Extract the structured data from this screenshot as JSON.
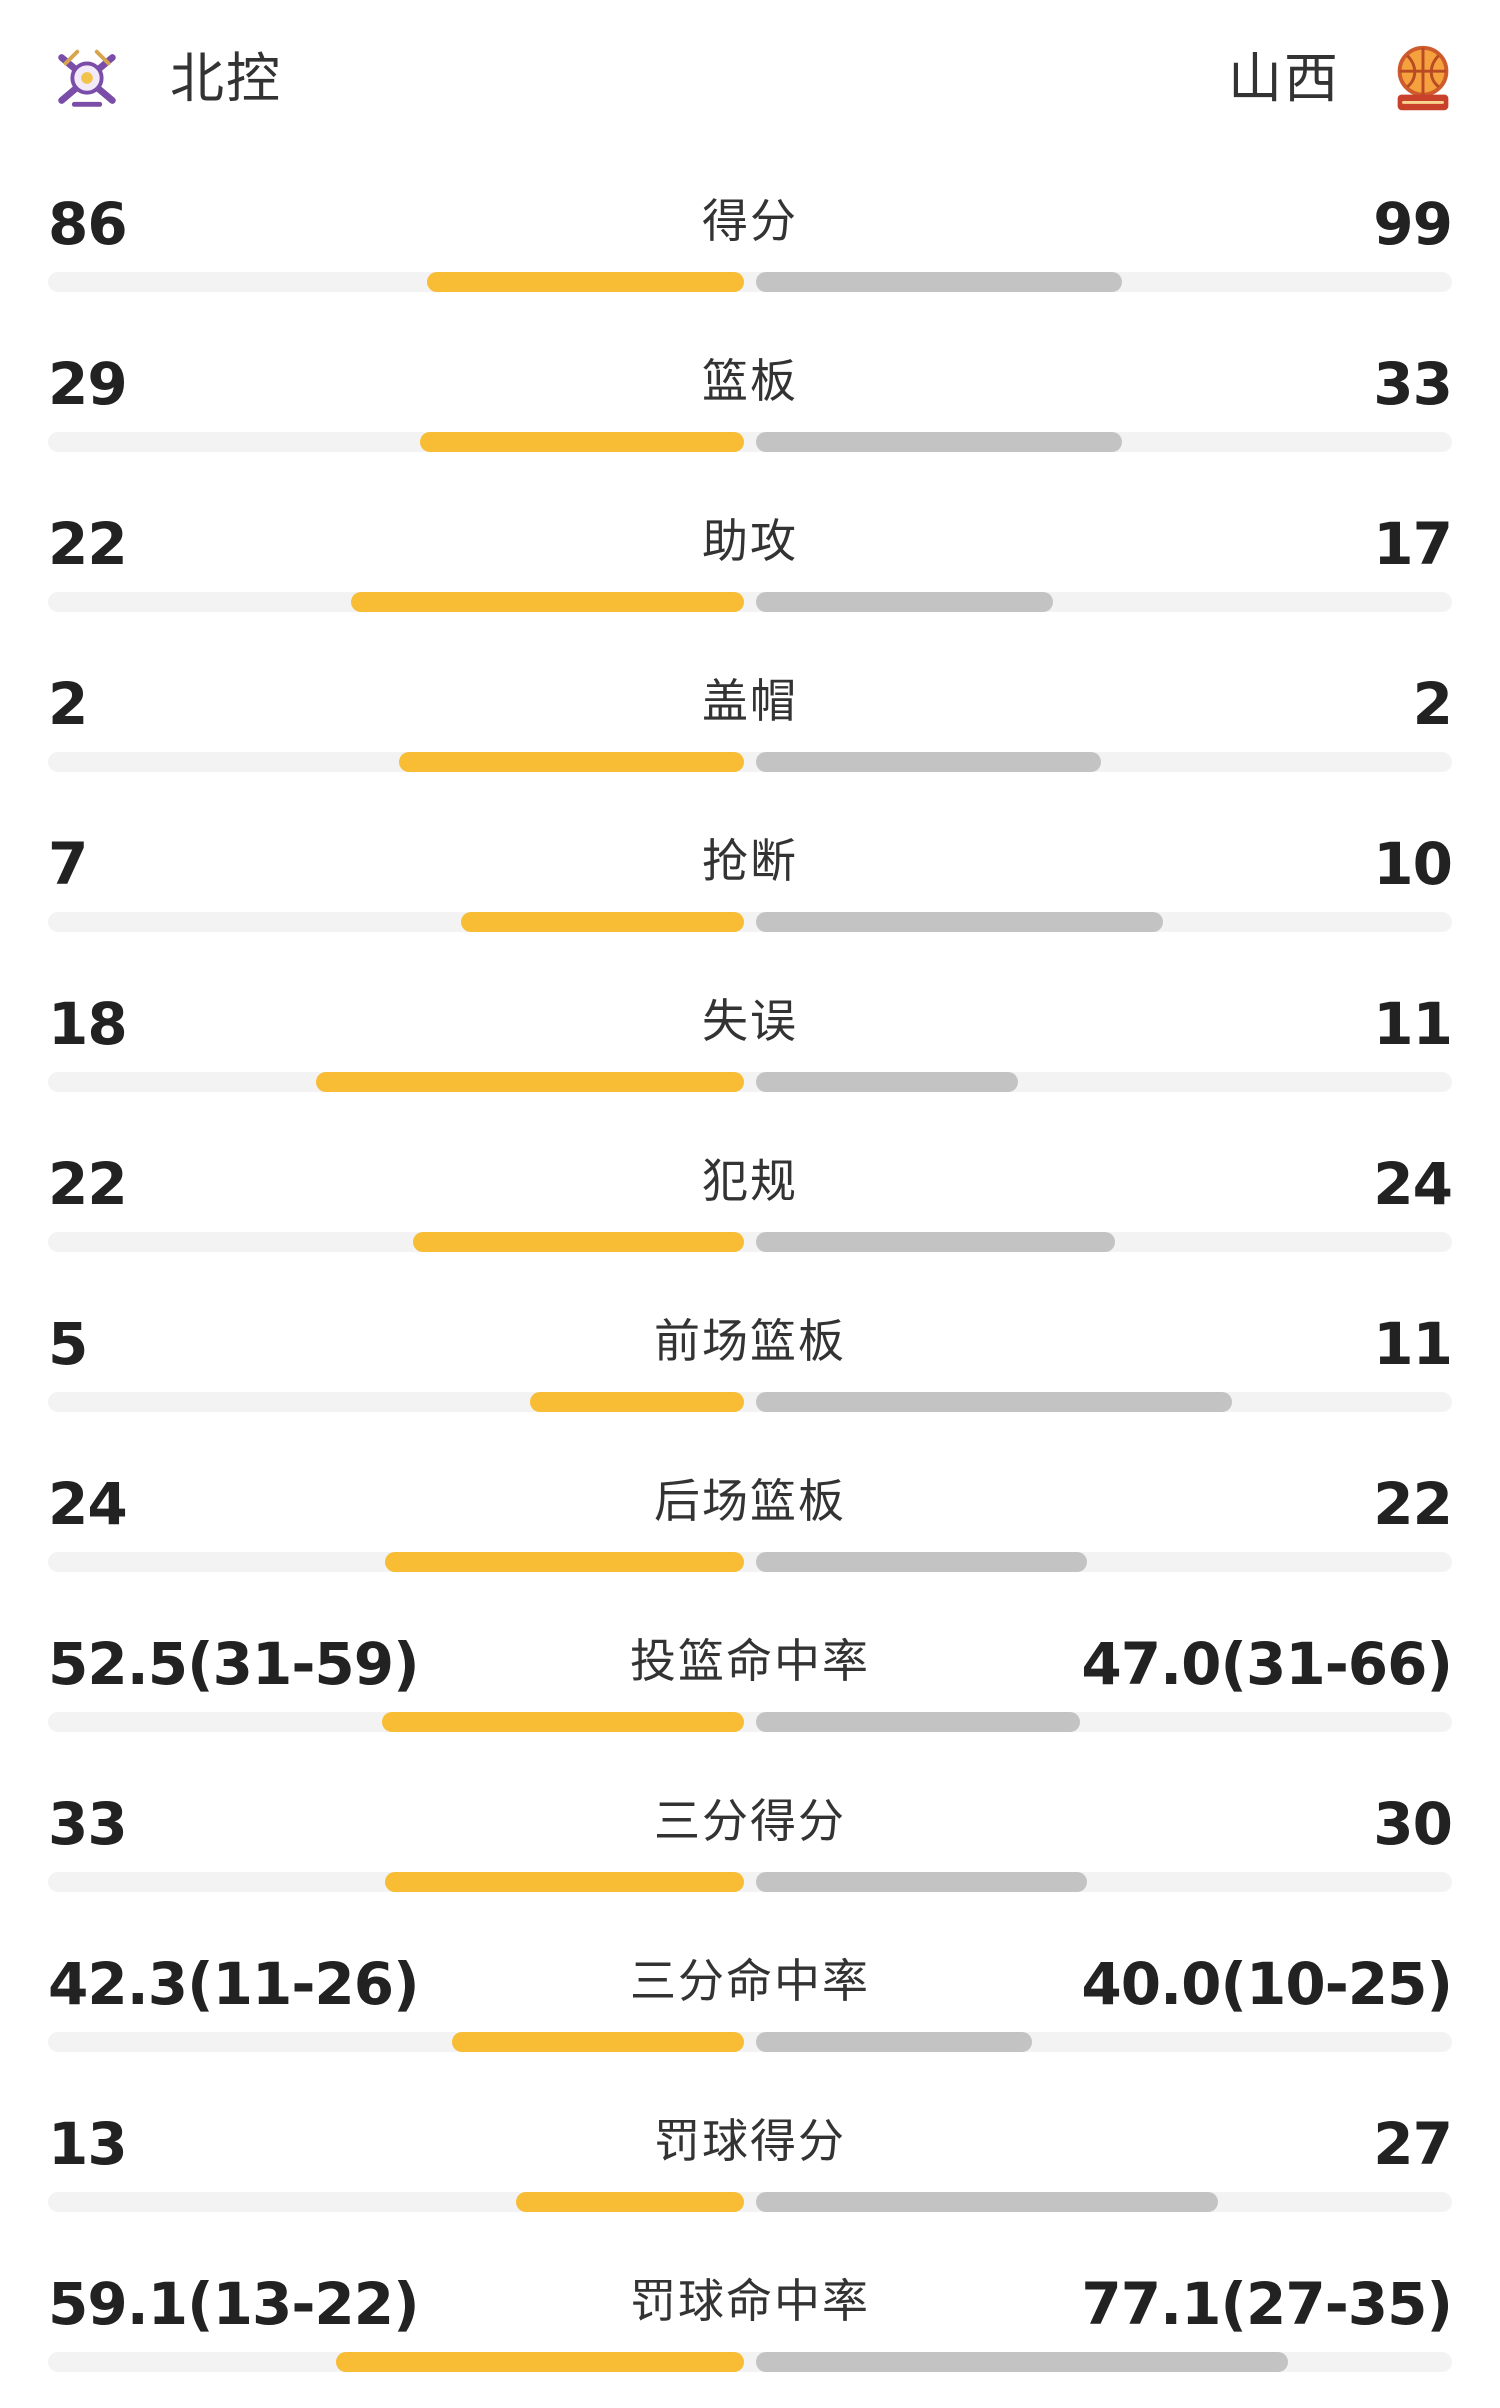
{
  "header": {
    "home_team": {
      "name": "北控",
      "logo": "beikong-crossed-swords-logo-icon"
    },
    "away_team": {
      "name": "山西",
      "logo": "shanxi-basketball-logo-icon"
    }
  },
  "colors": {
    "home_bar": "#f8bc35",
    "away_bar": "#c3c3c3",
    "track": "#f3f3f3"
  },
  "stats": [
    {
      "label": "得分",
      "home": "86",
      "away": "99",
      "home_fill": 0.46,
      "away_fill": 0.53
    },
    {
      "label": "篮板",
      "home": "29",
      "away": "33",
      "home_fill": 0.47,
      "away_fill": 0.53
    },
    {
      "label": "助攻",
      "home": "22",
      "away": "17",
      "home_fill": 0.57,
      "away_fill": 0.43
    },
    {
      "label": "盖帽",
      "home": "2",
      "away": "2",
      "home_fill": 0.5,
      "away_fill": 0.5
    },
    {
      "label": "抢断",
      "home": "7",
      "away": "10",
      "home_fill": 0.41,
      "away_fill": 0.59
    },
    {
      "label": "失误",
      "home": "18",
      "away": "11",
      "home_fill": 0.62,
      "away_fill": 0.38
    },
    {
      "label": "犯规",
      "home": "22",
      "away": "24",
      "home_fill": 0.48,
      "away_fill": 0.52
    },
    {
      "label": "前场篮板",
      "home": "5",
      "away": "11",
      "home_fill": 0.31,
      "away_fill": 0.69
    },
    {
      "label": "后场篮板",
      "home": "24",
      "away": "22",
      "home_fill": 0.52,
      "away_fill": 0.48
    },
    {
      "label": "投篮命中率",
      "home": "52.5(31-59)",
      "away": "47.0(31-66)",
      "home_fill": 0.525,
      "away_fill": 0.47
    },
    {
      "label": "三分得分",
      "home": "33",
      "away": "30",
      "home_fill": 0.52,
      "away_fill": 0.48
    },
    {
      "label": "三分命中率",
      "home": "42.3(11-26)",
      "away": "40.0(10-25)",
      "home_fill": 0.423,
      "away_fill": 0.4
    },
    {
      "label": "罚球得分",
      "home": "13",
      "away": "27",
      "home_fill": 0.33,
      "away_fill": 0.67
    },
    {
      "label": "罚球命中率",
      "home": "59.1(13-22)",
      "away": "77.1(27-35)",
      "home_fill": 0.591,
      "away_fill": 0.771
    }
  ]
}
